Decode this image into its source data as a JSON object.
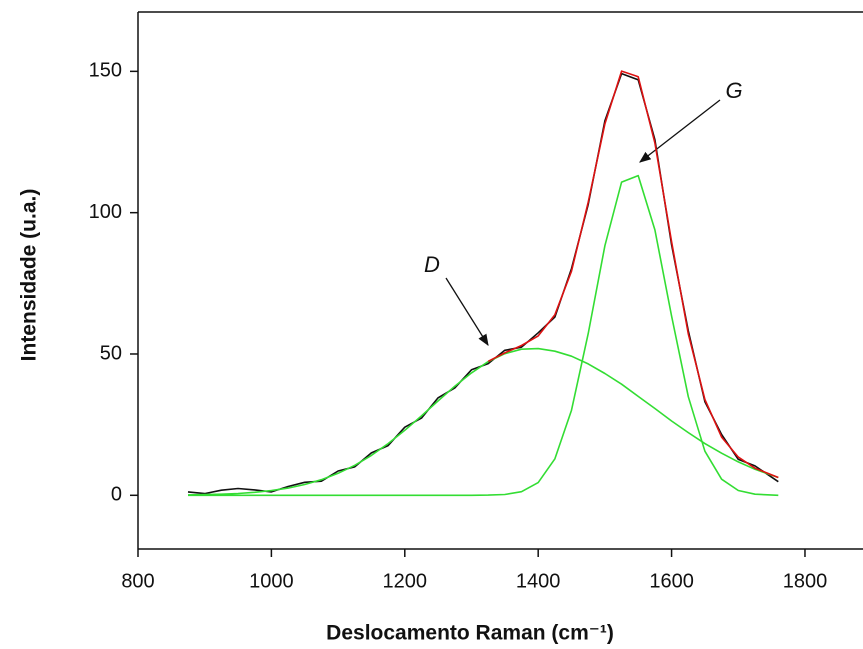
{
  "chart_data": {
    "type": "line",
    "x_label": "Deslocamento Raman (cm⁻¹)",
    "y_label": "Intensidade (u.a.)",
    "x": [
      875,
      900,
      925,
      950,
      975,
      1000,
      1025,
      1050,
      1075,
      1100,
      1125,
      1150,
      1175,
      1200,
      1225,
      1250,
      1275,
      1300,
      1325,
      1350,
      1375,
      1400,
      1425,
      1450,
      1475,
      1500,
      1525,
      1550,
      1575,
      1600,
      1625,
      1650,
      1675,
      1700,
      1725,
      1760
    ],
    "series": [
      {
        "color": "#111111",
        "values": [
          1.2,
          0.6,
          1.8,
          2.4,
          1.9,
          1.2,
          3.1,
          4.6,
          5.0,
          8.6,
          10.1,
          15.0,
          17.6,
          24.1,
          27.3,
          34.5,
          38.0,
          44.4,
          46.6,
          51.3,
          52.4,
          57.5,
          63.1,
          80.2,
          102.9,
          132.5,
          149.2,
          147.0,
          125.8,
          88.6,
          58.2,
          33.1,
          21.5,
          12.7,
          10.4,
          4.8
        ]
      },
      {
        "color": "#33dd33",
        "values": [
          0.13,
          0.23,
          0.39,
          0.65,
          1.06,
          1.67,
          2.56,
          3.81,
          5.52,
          7.77,
          10.6,
          14.1,
          18.3,
          23.0,
          28.1,
          33.4,
          38.6,
          43.3,
          47.3,
          50.1,
          51.7,
          51.9,
          51.0,
          49.2,
          46.5,
          43.1,
          39.3,
          35.0,
          30.7,
          26.3,
          22.2,
          18.3,
          14.9,
          11.8,
          9.2,
          6.3
        ]
      },
      {
        "color": "#33dd33",
        "values": [
          0,
          0,
          0,
          0,
          0,
          0,
          0,
          0,
          0,
          0,
          0,
          0,
          0,
          0,
          0,
          0,
          0,
          0,
          0.06,
          0.29,
          1.28,
          4.5,
          12.9,
          30.1,
          57.2,
          88.3,
          110.8,
          113.1,
          93.9,
          63.4,
          34.9,
          15.6,
          5.7,
          1.7,
          0.4,
          0.0
        ]
      },
      {
        "color": "#dd1111",
        "values": [
          null,
          null,
          null,
          null,
          null,
          null,
          null,
          null,
          null,
          null,
          null,
          null,
          null,
          null,
          null,
          null,
          null,
          null,
          47.4,
          50.4,
          53.0,
          56.4,
          63.9,
          79.3,
          103.7,
          131.4,
          150.1,
          148.1,
          124.6,
          89.7,
          57.1,
          33.9,
          20.6,
          13.5,
          9.6,
          6.3
        ]
      }
    ],
    "annotations": [
      "D",
      "G"
    ],
    "xlim": [
      800,
      1887
    ],
    "ylim": [
      -19,
      171
    ],
    "xticks": [
      800,
      1000,
      1200,
      1400,
      1600,
      1800
    ],
    "yticks": [
      0,
      50,
      100,
      150
    ]
  }
}
